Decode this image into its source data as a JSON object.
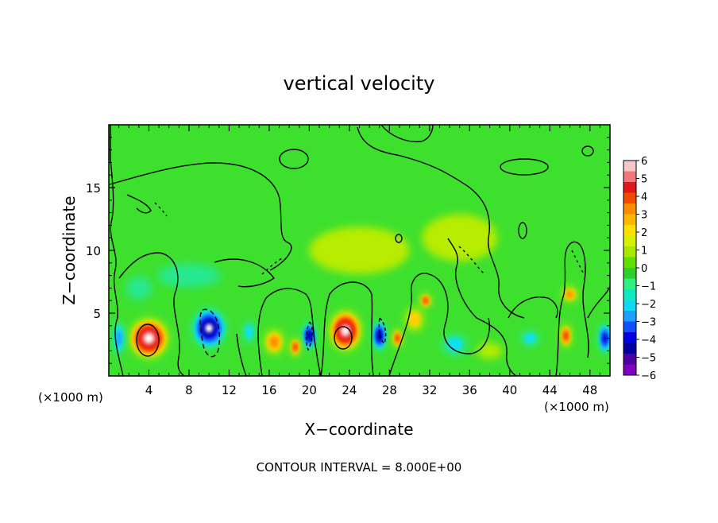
{
  "chart_data": {
    "type": "heatmap",
    "title": "vertical velocity",
    "xlabel": "X−coordinate",
    "ylabel": "Z−coordinate",
    "x_unit_left": "(×1000 m)",
    "x_unit_right": "(×1000 m)",
    "xlim": [
      0,
      50
    ],
    "ylim": [
      0,
      20
    ],
    "x_ticks": [
      4,
      8,
      12,
      16,
      20,
      24,
      28,
      32,
      36,
      40,
      44,
      48
    ],
    "y_ticks": [
      5,
      10,
      15
    ],
    "colorbar": {
      "ticks": [
        6,
        5,
        4,
        3,
        2,
        1,
        0,
        -1,
        -2,
        -3,
        -4,
        -5,
        -6
      ],
      "tick_labels": [
        "6",
        "5",
        "4",
        "3",
        "2",
        "1",
        "0",
        "−1",
        "−2",
        "−3",
        "−4",
        "−5",
        "−6"
      ],
      "colors": [
        "#f5c8c8",
        "#f07878",
        "#e01818",
        "#f24a00",
        "#ff8c00",
        "#ffb800",
        "#ffe000",
        "#d8f000",
        "#a8e800",
        "#60e000",
        "#2ed02e",
        "#30f080",
        "#10e8c0",
        "#10d8f0",
        "#1ea0ff",
        "#1050ff",
        "#0000e0",
        "#0000a0",
        "#5000a0",
        "#8000c0"
      ]
    },
    "contour_interval_label": "CONTOUR INTERVAL = 8.000E+00",
    "features": [
      {
        "x": 4,
        "z": 3,
        "w": 3.2,
        "h": 2.6,
        "value": 7
      },
      {
        "x": 10,
        "z": 3.8,
        "w": 2.8,
        "h": 2.6,
        "value": -7
      },
      {
        "x": 16.5,
        "z": 2.7,
        "w": 1.6,
        "h": 1.6,
        "value": 3
      },
      {
        "x": 20,
        "z": 3.2,
        "w": 1.1,
        "h": 1.8,
        "value": -6
      },
      {
        "x": 18.6,
        "z": 2.3,
        "w": 0.8,
        "h": 1.2,
        "value": 4
      },
      {
        "x": 23.6,
        "z": 3.6,
        "w": 2.6,
        "h": 2.6,
        "value": 7
      },
      {
        "x": 27,
        "z": 3.2,
        "w": 1.1,
        "h": 2.0,
        "value": -6
      },
      {
        "x": 28.8,
        "z": 3.0,
        "w": 0.8,
        "h": 1.2,
        "value": 4
      },
      {
        "x": 31.6,
        "z": 6.0,
        "w": 0.9,
        "h": 0.9,
        "value": 4
      },
      {
        "x": 30.5,
        "z": 4.5,
        "w": 1.5,
        "h": 1.5,
        "value": 2
      },
      {
        "x": 34.5,
        "z": 2.5,
        "w": 2.0,
        "h": 1.4,
        "value": -2
      },
      {
        "x": 45.6,
        "z": 3.2,
        "w": 0.9,
        "h": 1.5,
        "value": 4
      },
      {
        "x": 49.5,
        "z": 3.0,
        "w": 1.1,
        "h": 2.0,
        "value": -5
      },
      {
        "x": 1,
        "z": 3.0,
        "w": 1.0,
        "h": 2.2,
        "value": -3
      },
      {
        "x": 14,
        "z": 3.5,
        "w": 1.0,
        "h": 1.5,
        "value": -2
      },
      {
        "x": 42,
        "z": 3.0,
        "w": 1.5,
        "h": 1.0,
        "value": -2
      },
      {
        "x": 38,
        "z": 2.0,
        "w": 2.0,
        "h": 1.0,
        "value": 1
      },
      {
        "x": 25,
        "z": 10,
        "w": 8,
        "h": 3,
        "value": 1
      },
      {
        "x": 35,
        "z": 11,
        "w": 6,
        "h": 3,
        "value": 1
      },
      {
        "x": 8,
        "z": 8,
        "w": 5,
        "h": 1.5,
        "value": -1
      },
      {
        "x": 3,
        "z": 7,
        "w": 2,
        "h": 1.5,
        "value": -1
      },
      {
        "x": 46,
        "z": 6.5,
        "w": 1.2,
        "h": 1.0,
        "value": 3
      }
    ],
    "grid": false
  }
}
